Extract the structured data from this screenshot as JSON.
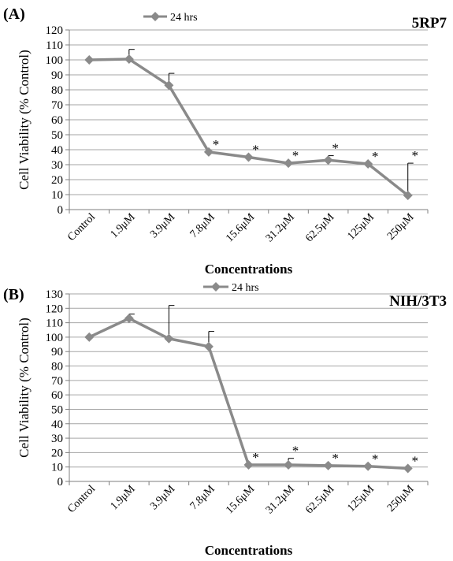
{
  "colors": {
    "line": "#8a8a8a",
    "grid": "#a6a6a6",
    "axis": "#7f7f7f",
    "text": "#000000"
  },
  "chart_data": [
    {
      "type": "line",
      "panel_label": "(A)",
      "cell_line": "5RP7",
      "categories": [
        "Control",
        "1.9μM",
        "3.9μM",
        "7.8μM",
        "15.6μM",
        "31.2μM",
        "62.5μM",
        "125μM",
        "250μM"
      ],
      "series": [
        {
          "name": "24 hrs",
          "values": [
            100,
            100.5,
            83,
            38.5,
            35,
            31,
            33,
            30.5,
            9.5
          ],
          "error_upper": [
            100,
            107,
            91,
            38.5,
            35,
            31,
            36,
            30.5,
            31
          ],
          "significant": [
            false,
            false,
            false,
            true,
            true,
            true,
            true,
            true,
            true
          ]
        }
      ],
      "significance_marker": "*",
      "xlabel": "Concentrations",
      "ylabel": "Cell Viability (% Control)",
      "ylim": [
        0,
        120
      ],
      "yticks": [
        0,
        10,
        20,
        30,
        40,
        50,
        60,
        70,
        80,
        90,
        100,
        110,
        120
      ],
      "grid": true,
      "legend": "top-left"
    },
    {
      "type": "line",
      "panel_label": "(B)",
      "cell_line": "NIH/3T3",
      "categories": [
        "Control",
        "1.9μM",
        "3.9μM",
        "7.8μM",
        "15.6μM",
        "31.2μM",
        "62.5μM",
        "125μM",
        "250μM"
      ],
      "series": [
        {
          "name": "24 hrs",
          "values": [
            100,
            113,
            99,
            93.5,
            11.5,
            11.5,
            11,
            10.5,
            9
          ],
          "error_upper": [
            100,
            116,
            122,
            104,
            11.5,
            16,
            11,
            10.5,
            9
          ],
          "significant": [
            false,
            false,
            false,
            false,
            true,
            true,
            true,
            true,
            true
          ]
        }
      ],
      "significance_marker": "*",
      "xlabel": "Concentrations",
      "ylabel": "Cell Viability (% Control)",
      "ylim": [
        0,
        130
      ],
      "yticks": [
        0,
        10,
        20,
        30,
        40,
        50,
        60,
        70,
        80,
        90,
        100,
        110,
        120,
        130
      ],
      "grid": true,
      "legend": "top-center"
    }
  ]
}
